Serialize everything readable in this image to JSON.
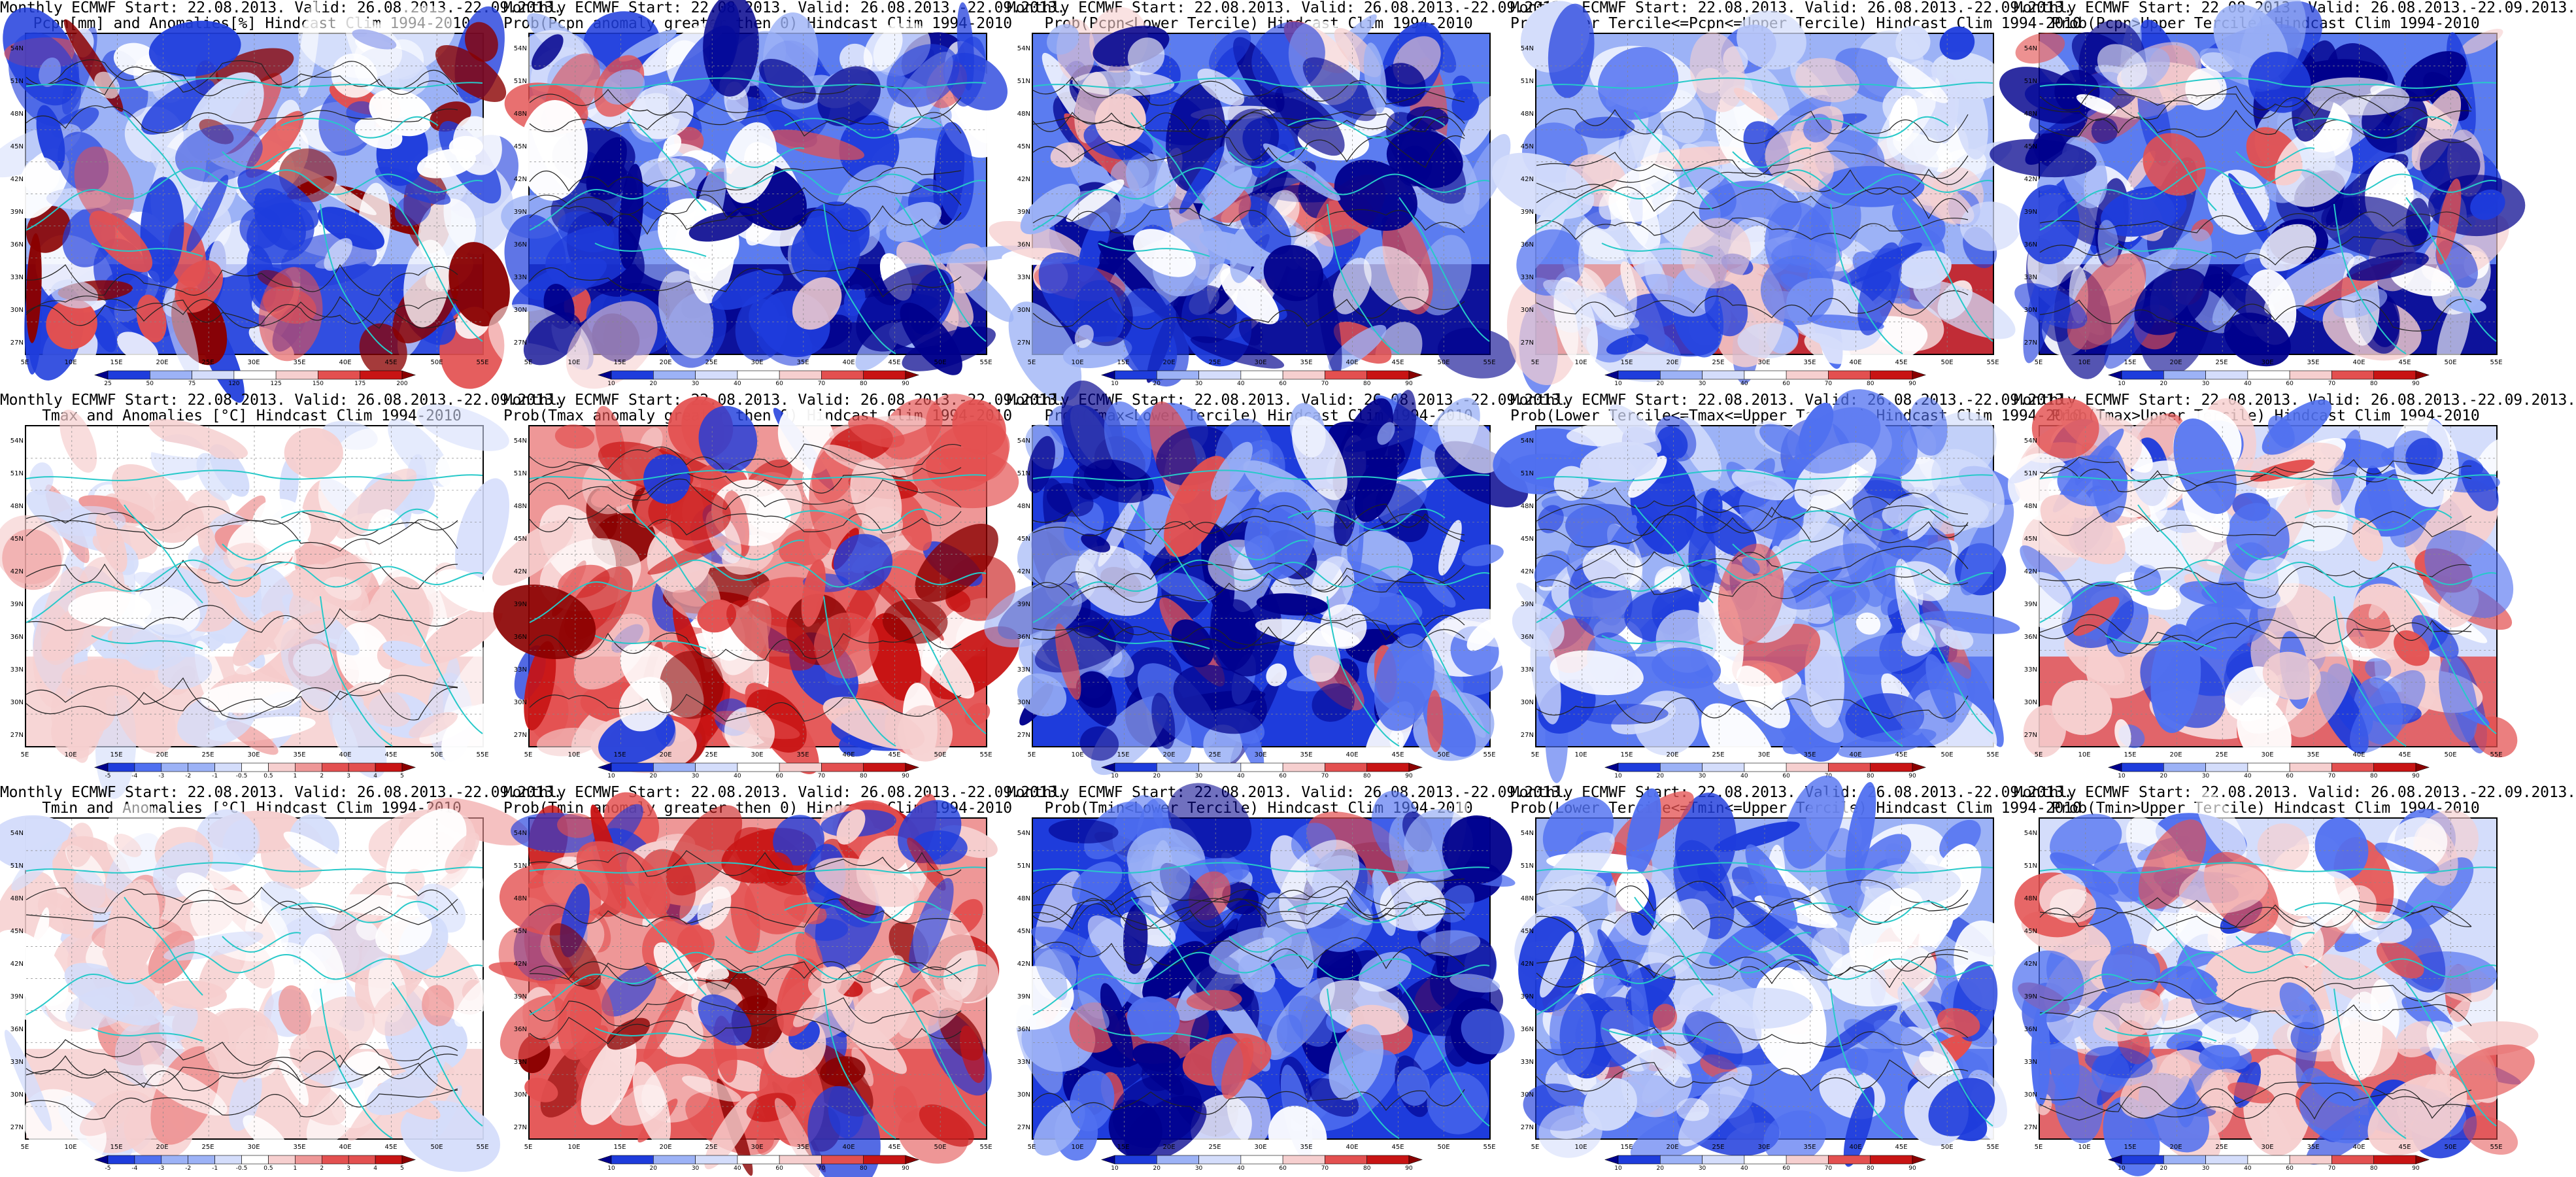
{
  "page": {
    "x_ticks": [
      "5E",
      "10E",
      "15E",
      "20E",
      "25E",
      "30E",
      "35E",
      "40E",
      "45E",
      "50E",
      "55E"
    ],
    "y_ticks": [
      "54N",
      "51N",
      "48N",
      "45N",
      "42N",
      "39N",
      "36N",
      "33N",
      "30N",
      "27N"
    ],
    "prob_levels": [
      "10",
      "20",
      "30",
      "40",
      "60",
      "70",
      "80",
      "90"
    ],
    "pcpn_levels": [
      "25",
      "50",
      "75",
      "120",
      "125",
      "150",
      "175",
      "200"
    ],
    "temp_levels": [
      "-5",
      "-4",
      "-3",
      "-2",
      "-1",
      "-0.5",
      "0.5",
      "1",
      "2",
      "3",
      "4",
      "5"
    ],
    "prob_colors": [
      "#00008c",
      "#1e3cdc",
      "#5070f0",
      "#9cb2f6",
      "#d4ddfb",
      "#ffffff",
      "#f6cfcf",
      "#ee9797",
      "#e35050",
      "#c81414",
      "#8a0000"
    ]
  },
  "panels": [
    {
      "title_line1": "Monthly ECMWF Start: 22.08.2013. Valid: 26.08.2013.-22.09.2013.",
      "title_line2": "Pcpn[mm] and Anomalies[%] Hindcast Clim 1994-2010",
      "scale": "pcpn",
      "palette": "pcpn_anom"
    },
    {
      "title_line1": "Monthly ECMWF Start: 22.08.2013. Valid: 26.08.2013.-22.09.2013.",
      "title_line2": "Prob(Pcpn anomaly greater then 0) Hindcast Clim 1994-2010",
      "scale": "prob",
      "palette": "blue_heavy"
    },
    {
      "title_line1": "Monthly ECMWF Start: 22.08.2013. Valid: 26.08.2013.-22.09.2013.",
      "title_line2": "Prob(Pcpn<Lower Tercile) Hindcast Clim 1994-2010",
      "scale": "prob",
      "palette": "blue_heavy"
    },
    {
      "title_line1": "Monthly ECMWF Start: 22.08.2013. Valid: 26.08.2013.-22.09.2013.",
      "title_line2": "Prob(Lower Tercile<=Pcpn<=Upper Tercile) Hindcast Clim 1994-2010",
      "scale": "prob",
      "palette": "blue_redsouth"
    },
    {
      "title_line1": "Monthly ECMWF Start: 22.08.2013. Valid: 26.08.2013.-22.09.2013.",
      "title_line2": "Prob(Pcpn>Upper Tercile) Hindcast Clim 1994-2010",
      "scale": "prob",
      "palette": "blue_heavy"
    },
    {
      "title_line1": "Monthly ECMWF Start: 22.08.2013. Valid: 26.08.2013.-22.09.2013.",
      "title_line2": "Tmax and Anomalies [°C] Hindcast Clim 1994-2010",
      "scale": "temp",
      "palette": "light_red"
    },
    {
      "title_line1": "Monthly ECMWF Start: 22.08.2013. Valid: 26.08.2013.-22.09.2013.",
      "title_line2": "Prob(Tmax anomaly greater then 0) Hindcast Clim 1994-2010",
      "scale": "prob",
      "palette": "red_heavy"
    },
    {
      "title_line1": "Monthly ECMWF Start: 22.08.2013. Valid: 26.08.2013.-22.09.2013.",
      "title_line2": "Prob(Tmax<Lower Tercile) Hindcast Clim 1994-2010",
      "scale": "prob",
      "palette": "deep_blue"
    },
    {
      "title_line1": "Monthly ECMWF Start: 22.08.2013. Valid: 26.08.2013.-22.09.2013.",
      "title_line2": "Prob(Lower Tercile<=Tmax<=Upper Tercile) Hindcast Clim 1994-2010",
      "scale": "prob",
      "palette": "blue_mixed"
    },
    {
      "title_line1": "Monthly ECMWF Start: 22.08.2013. Valid: 26.08.2013.-22.09.2013.",
      "title_line2": "Prob(Tmax>Upper Tercile) Hindcast Clim 1994-2010",
      "scale": "prob",
      "palette": "mixed"
    },
    {
      "title_line1": "Monthly ECMWF Start: 22.08.2013. Valid: 26.08.2013.-22.09.2013.",
      "title_line2": "Tmin and Anomalies [°C] Hindcast Clim 1994-2010",
      "scale": "temp",
      "palette": "light_red"
    },
    {
      "title_line1": "Monthly ECMWF Start: 22.08.2013. Valid: 26.08.2013.-22.09.2013.",
      "title_line2": "Prob(Tmin anomaly greater then 0) Hindcast Clim 1994-2010",
      "scale": "prob",
      "palette": "red_heavy"
    },
    {
      "title_line1": "Monthly ECMWF Start: 22.08.2013. Valid: 26.08.2013.-22.09.2013.",
      "title_line2": "Prob(Tmin<Lower Tercile) Hindcast Clim 1994-2010",
      "scale": "prob",
      "palette": "deep_blue"
    },
    {
      "title_line1": "Monthly ECMWF Start: 22.08.2013. Valid: 26.08.2013.-22.09.2013.",
      "title_line2": "Prob(Lower Tercile<=Tmin<=Upper Tercile) Hindcast Clim 1994-2010",
      "scale": "prob",
      "palette": "blue_mixed"
    },
    {
      "title_line1": "Monthly ECMWF Start: 22.08.2013. Valid: 26.08.2013.-22.09.2013.",
      "title_line2": "Prob(Tmin>Upper Tercile) Hindcast Clim 1994-2010",
      "scale": "prob",
      "palette": "mixed"
    }
  ]
}
